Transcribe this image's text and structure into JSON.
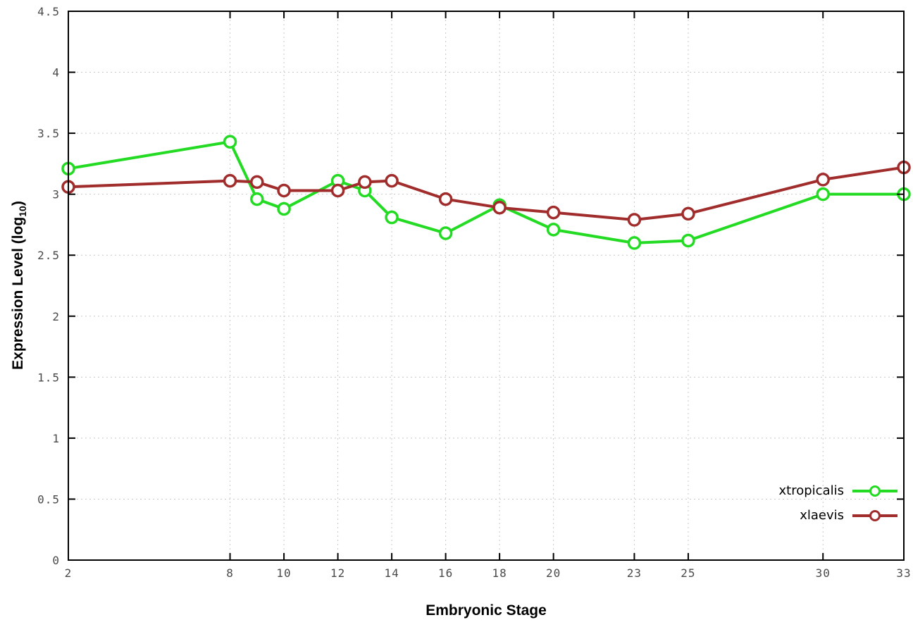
{
  "chart_data": {
    "type": "line",
    "title": "",
    "xlabel": "Embryonic Stage",
    "ylabel": "Expression Level (log10)",
    "ylabel_parts": {
      "pre": "Expression Level (log",
      "sub": "10",
      "post": ")"
    },
    "xlim": [
      2,
      33
    ],
    "ylim": [
      0,
      4.5
    ],
    "grid": true,
    "grid_style": "dotted",
    "legend_position": "inside bottom-right",
    "x": [
      2,
      8,
      9,
      10,
      12,
      13,
      14,
      16,
      18,
      20,
      23,
      25,
      30,
      33
    ],
    "xticks": [
      2,
      8,
      10,
      12,
      14,
      16,
      18,
      20,
      23,
      25,
      30,
      33
    ],
    "yticks": [
      0,
      0.5,
      1,
      1.5,
      2,
      2.5,
      3,
      3.5,
      4,
      4.5
    ],
    "series": [
      {
        "name": "xtropicalis",
        "color": "#23db23",
        "marker": "open-circle",
        "values": [
          3.21,
          3.43,
          2.96,
          2.88,
          3.11,
          3.03,
          2.81,
          2.68,
          2.91,
          2.71,
          2.6,
          2.62,
          3.0,
          3.0
        ]
      },
      {
        "name": "xlaevis",
        "color": "#a02c2c",
        "marker": "open-circle",
        "values": [
          3.06,
          3.11,
          3.1,
          3.03,
          3.03,
          3.1,
          3.11,
          2.96,
          2.89,
          2.85,
          2.79,
          2.84,
          3.12,
          3.22
        ]
      }
    ],
    "colors": {
      "background": "#ffffff",
      "grid": "#c8c8c8",
      "axis": "#000000",
      "tick_text": "#4a4a4a"
    }
  }
}
